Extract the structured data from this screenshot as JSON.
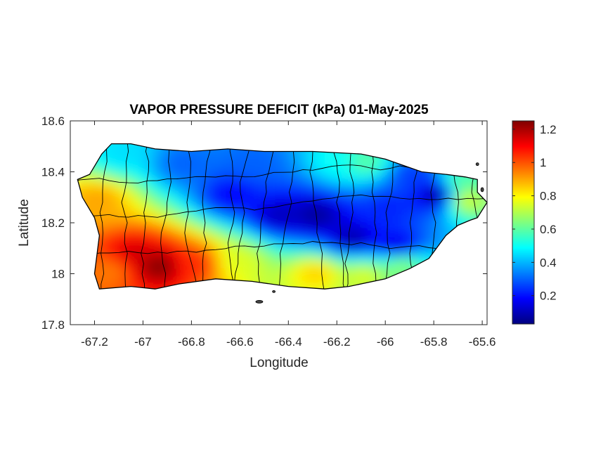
{
  "title": "VAPOR PRESSURE DEFICIT (kPa) 01-May-2025",
  "xlabel": "Longitude",
  "ylabel": "Latitude",
  "x_ticks": [
    "-67.2",
    "-67",
    "-66.8",
    "-66.6",
    "-66.4",
    "-66.2",
    "-66",
    "-65.8",
    "-65.6"
  ],
  "y_ticks": [
    "18.6",
    "18.4",
    "18.2",
    "18",
    "17.8"
  ],
  "colorbar_ticks": [
    "1.2",
    "1",
    "0.8",
    "0.6",
    "0.4",
    "0.2"
  ],
  "colors": {
    "colormap": [
      "#00007f",
      "#0000ff",
      "#007fff",
      "#00ffff",
      "#7fff7f",
      "#ffff00",
      "#ff7f00",
      "#ff0000",
      "#7f0000"
    ],
    "border": "#000000",
    "axes": "#262626"
  },
  "chart_data": {
    "type": "heatmap",
    "title": "VAPOR PRESSURE DEFICIT (kPa) 01-May-2025",
    "xlabel": "Longitude",
    "ylabel": "Latitude",
    "xlim": [
      -67.3,
      -65.58
    ],
    "ylim": [
      17.8,
      18.6
    ],
    "x_ticks": [
      -67.2,
      -67,
      -66.8,
      -66.6,
      -66.4,
      -66.2,
      -66,
      -65.8,
      -65.6
    ],
    "y_ticks": [
      17.8,
      18,
      18.2,
      18.4,
      18.6
    ],
    "colorbar": {
      "min": 0.03,
      "max": 1.25,
      "ticks": [
        0.2,
        0.4,
        0.6,
        0.8,
        1,
        1.2
      ],
      "colormap": "jet"
    },
    "island_outline": [
      [
        -67.27,
        18.37
      ],
      [
        -67.22,
        18.39
      ],
      [
        -67.17,
        18.47
      ],
      [
        -67.13,
        18.51
      ],
      [
        -67.05,
        18.51
      ],
      [
        -66.95,
        18.49
      ],
      [
        -66.8,
        18.48
      ],
      [
        -66.65,
        18.49
      ],
      [
        -66.5,
        18.48
      ],
      [
        -66.3,
        18.48
      ],
      [
        -66.1,
        18.47
      ],
      [
        -66.0,
        18.45
      ],
      [
        -65.85,
        18.4
      ],
      [
        -65.75,
        18.39
      ],
      [
        -65.67,
        18.38
      ],
      [
        -65.62,
        18.37
      ],
      [
        -65.62,
        18.32
      ],
      [
        -65.58,
        18.28
      ],
      [
        -65.62,
        18.22
      ],
      [
        -65.65,
        18.21
      ],
      [
        -65.7,
        18.19
      ],
      [
        -65.75,
        18.15
      ],
      [
        -65.82,
        18.06
      ],
      [
        -65.9,
        18.02
      ],
      [
        -66.0,
        17.98
      ],
      [
        -66.15,
        17.95
      ],
      [
        -66.25,
        17.94
      ],
      [
        -66.4,
        17.95
      ],
      [
        -66.55,
        17.97
      ],
      [
        -66.7,
        17.98
      ],
      [
        -66.85,
        17.96
      ],
      [
        -66.95,
        17.94
      ],
      [
        -67.05,
        17.95
      ],
      [
        -67.18,
        17.94
      ],
      [
        -67.2,
        18.0
      ],
      [
        -67.18,
        18.15
      ],
      [
        -67.2,
        18.22
      ],
      [
        -67.25,
        18.3
      ],
      [
        -67.27,
        18.37
      ]
    ],
    "field_features": [
      {
        "lon": -67.05,
        "lat": 18.07,
        "value": 1.15
      },
      {
        "lon": -66.95,
        "lat": 18.02,
        "value": 1.25
      },
      {
        "lon": -66.8,
        "lat": 18.03,
        "value": 1.05
      },
      {
        "lon": -67.15,
        "lat": 18.0,
        "value": 0.95
      },
      {
        "lon": -67.2,
        "lat": 18.28,
        "value": 0.9
      },
      {
        "lon": -66.62,
        "lat": 18.04,
        "value": 0.75
      },
      {
        "lon": -66.3,
        "lat": 17.99,
        "value": 0.85
      },
      {
        "lon": -66.1,
        "lat": 17.98,
        "value": 0.75
      },
      {
        "lon": -65.95,
        "lat": 18.02,
        "value": 0.65
      },
      {
        "lon": -65.68,
        "lat": 18.28,
        "value": 0.75
      },
      {
        "lon": -65.7,
        "lat": 18.35,
        "value": 0.6
      },
      {
        "lon": -66.1,
        "lat": 18.43,
        "value": 0.6
      },
      {
        "lon": -66.2,
        "lat": 18.43,
        "value": 0.5
      },
      {
        "lon": -67.1,
        "lat": 18.46,
        "value": 0.45
      },
      {
        "lon": -66.85,
        "lat": 18.42,
        "value": 0.3
      },
      {
        "lon": -66.55,
        "lat": 18.42,
        "value": 0.3
      },
      {
        "lon": -66.65,
        "lat": 18.3,
        "value": 0.18
      },
      {
        "lon": -66.45,
        "lat": 18.22,
        "value": 0.1
      },
      {
        "lon": -66.3,
        "lat": 18.22,
        "value": 0.06
      },
      {
        "lon": -66.15,
        "lat": 18.13,
        "value": 0.08
      },
      {
        "lon": -65.97,
        "lat": 18.1,
        "value": 0.15
      },
      {
        "lon": -65.8,
        "lat": 18.3,
        "value": 0.05
      },
      {
        "lon": -66.0,
        "lat": 18.25,
        "value": 0.22
      },
      {
        "lon": -65.9,
        "lat": 18.38,
        "value": 0.25
      }
    ]
  }
}
